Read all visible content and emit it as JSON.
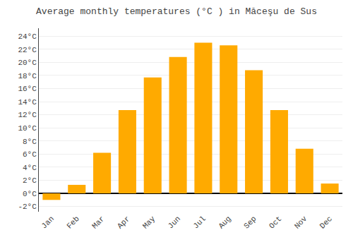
{
  "chart_data": {
    "type": "bar",
    "title": "Average monthly temperatures (°C ) in Măceşu de Sus",
    "categories": [
      "Jan",
      "Feb",
      "Mar",
      "Apr",
      "May",
      "Jun",
      "Jul",
      "Aug",
      "Sep",
      "Oct",
      "Nov",
      "Dec"
    ],
    "values": [
      -1.0,
      1.3,
      6.2,
      12.7,
      17.7,
      20.8,
      23.0,
      22.6,
      18.8,
      12.7,
      6.8,
      1.5
    ],
    "color": "#FFAA00",
    "ylim": [
      -2.8,
      25.2
    ],
    "yticks": [
      {
        "value": -2,
        "label": "-2°C"
      },
      {
        "value": 0,
        "label": "0°C"
      },
      {
        "value": 2,
        "label": "2°C"
      },
      {
        "value": 4,
        "label": "4°C"
      },
      {
        "value": 6,
        "label": "6°C"
      },
      {
        "value": 8,
        "label": "8°C"
      },
      {
        "value": 10,
        "label": "10°C"
      },
      {
        "value": 12,
        "label": "12°C"
      },
      {
        "value": 14,
        "label": "14°C"
      },
      {
        "value": 16,
        "label": "16°C"
      },
      {
        "value": 18,
        "label": "18°C"
      },
      {
        "value": 20,
        "label": "20°C"
      },
      {
        "value": 22,
        "label": "22°C"
      },
      {
        "value": 24,
        "label": "24°C"
      }
    ],
    "grid": true
  }
}
